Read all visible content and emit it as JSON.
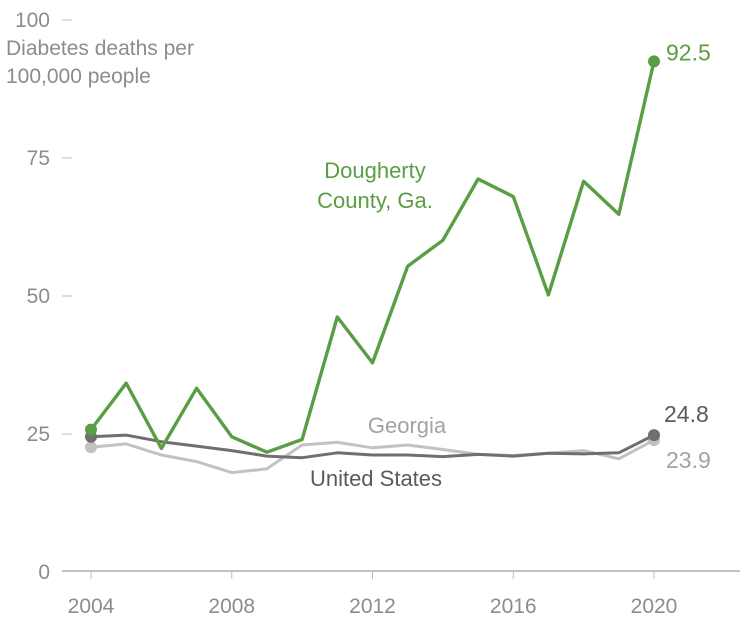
{
  "chart_data": {
    "type": "line",
    "ylabel": [
      "Diabetes deaths per",
      "100,000 people"
    ],
    "ylim": [
      0,
      100
    ],
    "yticks": [
      0,
      25,
      50,
      75,
      100
    ],
    "xticks": [
      2004,
      2008,
      2012,
      2016,
      2020
    ],
    "xlim": [
      2004,
      2022
    ],
    "x": [
      2004,
      2005,
      2006,
      2007,
      2008,
      2009,
      2010,
      2011,
      2012,
      2013,
      2014,
      2015,
      2016,
      2017,
      2018,
      2019,
      2020
    ],
    "series": [
      {
        "name": "Georgia",
        "label_lines": [
          "Georgia"
        ],
        "end_label": "23.9",
        "color": "#c2c2c2",
        "label_color": "#a3a3a3",
        "values": [
          22.6,
          23.2,
          21.2,
          20.0,
          18.0,
          18.7,
          23.0,
          23.5,
          22.5,
          23.0,
          22.2,
          21.3,
          21.1,
          21.5,
          22.0,
          20.5,
          23.9
        ]
      },
      {
        "name": "United States",
        "label_lines": [
          "United States"
        ],
        "end_label": "24.8",
        "color": "#6f6f6f",
        "label_color": "#5a5a5a",
        "values": [
          24.5,
          24.8,
          23.6,
          22.8,
          22.0,
          21.0,
          20.7,
          21.6,
          21.2,
          21.2,
          20.9,
          21.3,
          21.0,
          21.5,
          21.4,
          21.6,
          24.8
        ]
      },
      {
        "name": "Dougherty County, Ga.",
        "label_lines": [
          "Dougherty",
          "County, Ga."
        ],
        "end_label": "92.5",
        "color": "#5a9e43",
        "label_color": "#5a9e43",
        "values": [
          25.8,
          34.2,
          22.4,
          33.3,
          24.5,
          21.7,
          24.0,
          46.2,
          37.9,
          55.4,
          60.1,
          71.2,
          68.0,
          50.2,
          70.8,
          64.8,
          92.5
        ]
      }
    ]
  }
}
